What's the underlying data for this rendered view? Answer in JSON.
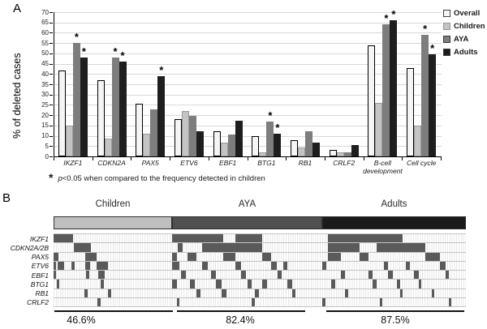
{
  "panelA": {
    "label": "A",
    "ylabel": "% of deleted cases",
    "footnote": {
      "marker": "*",
      "p": "p",
      "rest": "<0.05 when compared to the frequency detected in children"
    }
  },
  "panelB": {
    "label": "B"
  },
  "colors": {
    "overall": "#f5f5f5",
    "children": "#c4c4c4",
    "aya": "#7d7d7d",
    "adults": "#1e1e1e",
    "overall_border": "#000000",
    "children_border": "#9a9a9a",
    "gridline": "#d8d8d8",
    "heatmap_cell": "#5a5a5a",
    "header_children": "#bfbfbf",
    "header_aya": "#505050",
    "header_adults": "#1a1a1a"
  },
  "chart_data": [
    {
      "type": "bar",
      "title": "",
      "xlabel": "",
      "ylabel": "% of deleted cases",
      "ylim": [
        0,
        70
      ],
      "yticks": [
        0,
        5,
        10,
        15,
        20,
        25,
        30,
        35,
        40,
        45,
        50,
        55,
        60,
        65,
        70
      ],
      "grid": true,
      "legend_position": "right",
      "categories": [
        "IKZF1",
        "CDKN2A",
        "PAX5",
        "ETV6",
        "EBF1",
        "BTG1",
        "RB1",
        "CRLF2",
        "B-cell development",
        "Cell cycle"
      ],
      "series": [
        {
          "name": "Overall",
          "color_key": "overall",
          "values": [
            41.5,
            37,
            25.5,
            18,
            12,
            10,
            8,
            3,
            54,
            43
          ]
        },
        {
          "name": "Children",
          "color_key": "children",
          "values": [
            15,
            8.7,
            11,
            22,
            6.5,
            2,
            4.5,
            2,
            26,
            15
          ]
        },
        {
          "name": "AYA",
          "color_key": "aya",
          "values": [
            55,
            48,
            23,
            19.5,
            10.5,
            17,
            12,
            2,
            64,
            59
          ]
        },
        {
          "name": "Adults",
          "color_key": "adults",
          "values": [
            48,
            46,
            39,
            12,
            17.5,
            11,
            6.5,
            5.5,
            66,
            49.5
          ]
        }
      ],
      "annotation_marker": "*",
      "significant_vs_children": {
        "AYA": [
          true,
          true,
          false,
          false,
          false,
          true,
          false,
          false,
          true,
          true
        ],
        "Adults": [
          true,
          true,
          true,
          false,
          false,
          true,
          false,
          false,
          true,
          true
        ]
      }
    },
    {
      "type": "heatmap",
      "rows": [
        "IKZF1",
        "CDKN2A/2B",
        "PAX5",
        "ETV6",
        "EBF1",
        "BTG1",
        "RB1",
        "CRLF2"
      ],
      "groups": [
        {
          "label": "Children",
          "percent": "46.6%",
          "dark_runs_pct": {
            "IKZF1": [
              [
                0,
                16.5
              ]
            ],
            "CDKN2A/2B": [
              [
                17,
                31.5
              ]
            ],
            "PAX5": [
              [
                0,
                4
              ],
              [
                27,
                36
              ]
            ],
            "ETV6": [
              [
                0,
                2
              ],
              [
                3.5,
                9
              ],
              [
                15,
                17.5
              ],
              [
                27,
                31
              ],
              [
                36,
                46
              ]
            ],
            "EBF1": [
              [
                0,
                2
              ],
              [
                27.5,
                30
              ],
              [
                38,
                43
              ]
            ],
            "BTG1": [
              [
                2.5,
                5
              ],
              [
                40,
                42.5
              ]
            ],
            "RB1": [
              [
                26,
                28.5
              ],
              [
                46,
                48.5
              ]
            ],
            "CRLF2": [
              [
                37,
                39.5
              ]
            ]
          }
        },
        {
          "label": "AYA",
          "percent": "82.4%",
          "dark_runs_pct": {
            "IKZF1": [
              [
                0,
                34
              ],
              [
                42,
                60
              ]
            ],
            "CDKN2A/2B": [
              [
                4,
                7
              ],
              [
                20,
                60
              ]
            ],
            "PAX5": [
              [
                0,
                3
              ],
              [
                10,
                16
              ],
              [
                34,
                42
              ],
              [
                60,
                66
              ]
            ],
            "ETV6": [
              [
                0,
                5
              ],
              [
                20,
                24
              ],
              [
                42,
                46
              ],
              [
                66,
                70
              ],
              [
                74,
                77
              ]
            ],
            "EBF1": [
              [
                6,
                9
              ],
              [
                26,
                29
              ],
              [
                46,
                49
              ],
              [
                70,
                73
              ]
            ],
            "BTG1": [
              [
                0,
                3
              ],
              [
                12,
                15
              ],
              [
                29,
                33
              ],
              [
                50,
                53
              ],
              [
                60,
                63
              ],
              [
                77,
                80
              ]
            ],
            "RB1": [
              [
                16,
                19
              ],
              [
                33,
                36
              ],
              [
                55,
                58
              ],
              [
                80,
                82
              ]
            ],
            "CRLF2": [
              [
                3,
                5
              ],
              [
                53,
                55
              ]
            ]
          }
        },
        {
          "label": "Adults",
          "percent": "87.5%",
          "dark_runs_pct": {
            "IKZF1": [
              [
                4,
                56
              ]
            ],
            "CDKN2A/2B": [
              [
                4,
                26
              ],
              [
                38,
                72
              ]
            ],
            "PAX5": [
              [
                4,
                13
              ],
              [
                26,
                32
              ],
              [
                72,
                82
              ]
            ],
            "ETV6": [
              [
                0,
                3
              ],
              [
                43,
                46
              ],
              [
                58,
                61
              ],
              [
                82,
                86
              ]
            ],
            "EBF1": [
              [
                13,
                16
              ],
              [
                32,
                35
              ],
              [
                46,
                49
              ],
              [
                64,
                67
              ],
              [
                86,
                88
              ]
            ],
            "BTG1": [
              [
                6,
                9
              ],
              [
                35,
                38
              ],
              [
                52,
                54
              ],
              [
                67,
                69
              ]
            ],
            "RB1": [
              [
                16,
                18
              ],
              [
                54,
                56
              ],
              [
                76,
                78
              ]
            ],
            "CRLF2": [
              [
                0,
                2
              ],
              [
                40,
                42
              ],
              [
                88,
                90
              ]
            ]
          }
        }
      ]
    }
  ]
}
